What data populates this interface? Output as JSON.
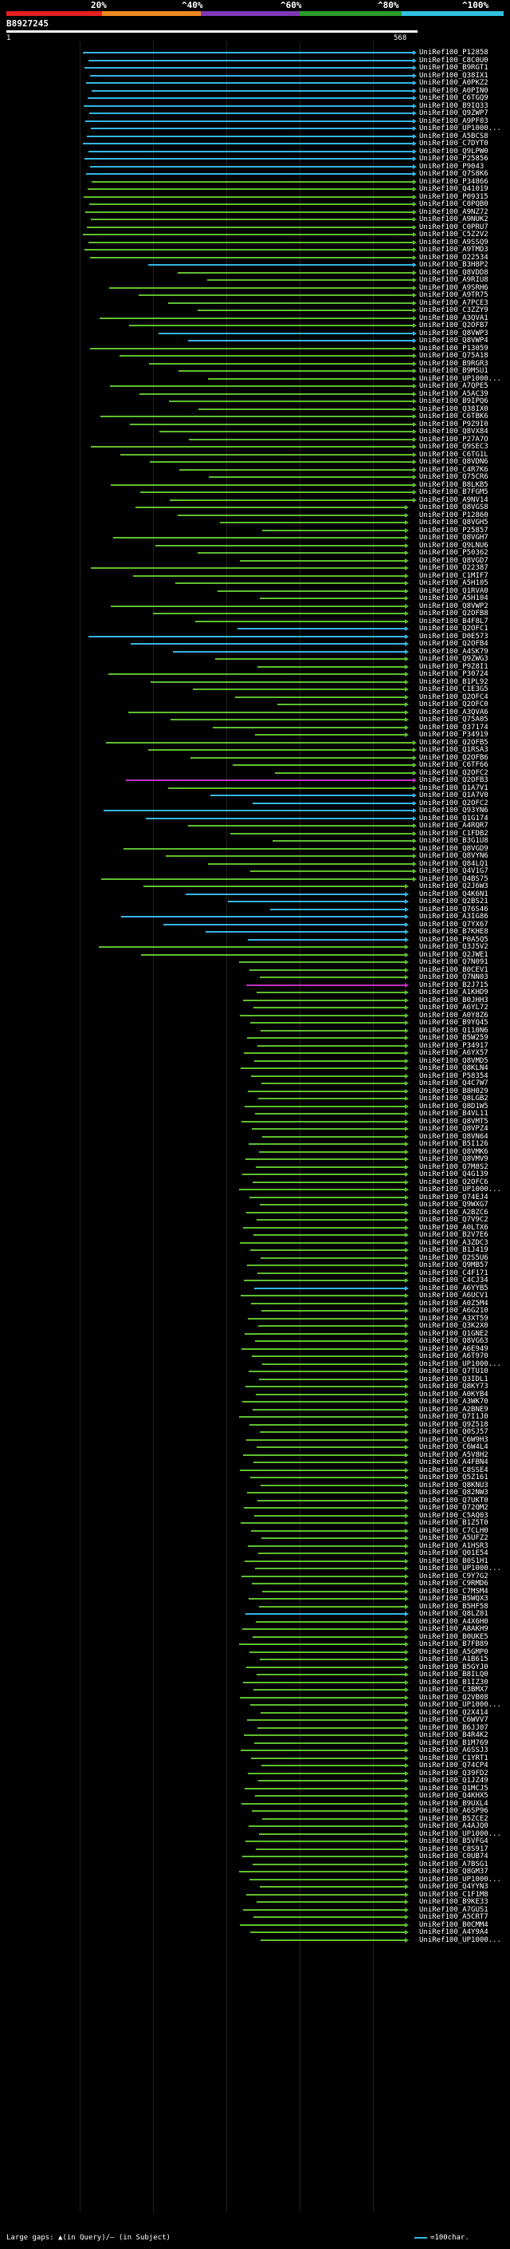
{
  "header": {
    "scale_labels": [
      "20%",
      "^40%",
      "^60%",
      "^80%",
      "^100%"
    ],
    "query_id": "B8927245",
    "query_start": "1",
    "query_end": "568"
  },
  "legend": {
    "gaps_text": "Large gaps: ▲(in Query)/— (in Subject)",
    "key_text": "=100char."
  },
  "colors": {
    "blue": "#34b6e4",
    "green": "#5fbf2f",
    "magenta": "#c032c0",
    "red": "#e62020",
    "orange": "#ef8a21",
    "purple": "#7f38b6"
  },
  "hits": [
    "UniRef100_P12858",
    "UniRef100_C8C0U0",
    "UniRef100_B9RGT1",
    "UniRef100_Q38IX1",
    "UniRef100_A0PKZ2",
    "UniRef100_A0PIN0",
    "UniRef100_C6TGQ9",
    "UniRef100_B9IQ33",
    "UniRef100_Q9ZWP7",
    "UniRef100_A9PF03",
    "UniRef100_UP1000...",
    "UniRef100_A5BCS8",
    "UniRef100_C7DYT0",
    "UniRef100_Q9LPW0",
    "UniRef100_P25856",
    "UniRef100_P9043",
    "UniRef100_Q7S8K6",
    "UniRef100_P34866",
    "UniRef100_Q41019",
    "UniRef100_P09315",
    "UniRef100_C0PQB0",
    "UniRef100_A9NZ72",
    "UniRef100_A9NUK2",
    "UniRef100_C0PRU7",
    "UniRef100_C5Z2V2",
    "UniRef100_A9SSQ9",
    "UniRef100_A9TMD3",
    "UniRef100_O22534",
    "UniRef100_B3H8P2",
    "UniRef100_Q8VDD8",
    "UniRef100_A9RIU8",
    "UniRef100_A9SRH6",
    "UniRef100_A9TR75",
    "UniRef100_A7PCE3",
    "UniRef100_C3ZZY9",
    "UniRef100_A3QVA1",
    "UniRef100_Q2OFB7",
    "UniRef100_Q8VWP3",
    "UniRef100_Q8VWP4",
    "UniRef100_P13059",
    "UniRef100_Q75A18",
    "UniRef100_B9RGR3",
    "UniRef100_B9MSU1",
    "UniRef100_UP1000...",
    "UniRef100_A7QPE5",
    "UniRef100_A5AC39",
    "UniRef100_B9IPQ6",
    "UniRef100_Q38IX0",
    "UniRef100_C6TBK6",
    "UniRef100_P9Z9I0",
    "UniRef100_Q8VX84",
    "UniRef100_P27A7O",
    "UniRef100_Q9SEC3",
    "UniRef100_C6TG1L",
    "UniRef100_Q8VDN6",
    "UniRef100_C4R7K6",
    "UniRef100_Q75CR6",
    "UniRef100_B8LKB5",
    "UniRef100_B7FGM5",
    "UniRef100_A9NV14",
    "UniRef100_Q8VGS8",
    "UniRef100_P12860",
    "UniRef100_Q8VGH5",
    "UniRef100_P25857",
    "UniRef100_Q8VGH7",
    "UniRef100_Q9LNU6",
    "UniRef100_P50362",
    "UniRef100_Q8VGD7",
    "UniRef100_O22387",
    "UniRef100_C1MIF7",
    "UniRef100_A5H105",
    "UniRef100_Q1RVA0",
    "UniRef100_A5H104",
    "UniRef100_Q8VWP2",
    "UniRef100_Q2OFB8",
    "UniRef100_B4F8L7",
    "UniRef100_Q2OFC1",
    "UniRef100_D0E573",
    "UniRef100_Q2OFB4",
    "UniRef100_A4SK79",
    "UniRef100_Q9ZWG3",
    "UniRef100_P9Z8I1",
    "UniRef100_P30724",
    "UniRef100_B1PL92",
    "UniRef100_C1E3G5",
    "UniRef100_Q2OFC4",
    "UniRef100_Q2OFC0",
    "UniRef100_A3QVA6",
    "UniRef100_Q75A05",
    "UniRef100_Q37174",
    "UniRef100_P34919",
    "UniRef100_Q2OFB5",
    "UniRef100_Q1RSA3",
    "UniRef100_Q2OFB6",
    "UniRef100_C6TF66",
    "UniRef100_Q2OFC2",
    "UniRef100_Q2OFB3",
    "UniRef100_Q1A7V1",
    "UniRef100_Q1A7V0",
    "UniRef100_Q2OFC2",
    "UniRef100_Q93YN6",
    "UniRef100_Q1G174",
    "UniRef100_A4RQR7",
    "UniRef100_C1FDB2",
    "UniRef100_B3G1U8",
    "UniRef100_Q8VGD9",
    "UniRef100_Q8VYN6",
    "UniRef100_Q84LQ1",
    "UniRef100_Q4V1G7",
    "UniRef100_Q4BS75",
    "UniRef100_Q2J6W3",
    "UniRef100_Q4K6N1",
    "UniRef100_Q2BS21",
    "UniRef100_Q76S46",
    "UniRef100_A3IG86",
    "UniRef100_Q7YX67",
    "UniRef100_B7KHE8",
    "UniRef100_P0A5Q5",
    "UniRef100_Q3J5V2",
    "UniRef100_Q2JWE1",
    "UniRef100_Q7N091",
    "UniRef100_B0CEV1",
    "UniRef100_Q7NN03",
    "UniRef100_B2J715",
    "UniRef100_A1KHD9",
    "UniRef100_B0JHH3",
    "UniRef100_A6YL72",
    "UniRef100_A0Y8Z6",
    "UniRef100_B9YQ45",
    "UniRef100_Q110N6",
    "UniRef100_B5W259",
    "UniRef100_P34917",
    "UniRef100_A6YX57",
    "UniRef100_Q8VMD5",
    "UniRef100_Q8KLN4",
    "UniRef100_P58354",
    "UniRef100_Q4C7W7",
    "UniRef100_B8H029",
    "UniRef100_Q8LGB2",
    "UniRef100_Q8D1W5",
    "UniRef100_B4VL11",
    "UniRef100_Q8VMT5",
    "UniRef100_Q8VPZ4",
    "UniRef100_Q8VN64",
    "UniRef100_B5I126",
    "UniRef100_Q8VMK6",
    "UniRef100_Q8VMV9",
    "UniRef100_Q7M8S2",
    "UniRef100_Q4G139",
    "UniRef100_Q2OFC6",
    "UniRef100_UP1000...",
    "UniRef100_Q74EJ4",
    "UniRef100_Q9WXG7",
    "UniRef100_A2BZC6",
    "UniRef100_Q7V9C2",
    "UniRef100_A0LTX6",
    "UniRef100_B2V7E6",
    "UniRef100_A3ZDC3",
    "UniRef100_B1J419",
    "UniRef100_Q2S5U6",
    "UniRef100_Q9MB57",
    "UniRef100_C4F171",
    "UniRef100_C4CJ34",
    "UniRef100_A6YYB5",
    "UniRef100_A6UCV1",
    "UniRef100_A0Z5M4",
    "UniRef100_A6G210",
    "UniRef100_A3XT59",
    "UniRef100_Q3K2X0",
    "UniRef100_Q1GNE2",
    "UniRef100_Q8VG63",
    "UniRef100_A6E949",
    "UniRef100_A6T970",
    "UniRef100_UP1000...",
    "UniRef100_Q7TU10",
    "UniRef100_Q3IDL1",
    "UniRef100_Q8KY73",
    "UniRef100_A0KYB4",
    "UniRef100_A3WK70",
    "UniRef100_A2BNE9",
    "UniRef100_Q7I1J0",
    "UniRef100_Q9Z518",
    "UniRef100_Q0SJ57",
    "UniRef100_C6W9H3",
    "UniRef100_C6W4L4",
    "UniRef100_A5V8H2",
    "UniRef100_A4FBN4",
    "UniRef100_C8SSE4",
    "UniRef100_Q5Z161",
    "UniRef100_Q8KNU3",
    "UniRef100_Q82NW3",
    "UniRef100_Q7UKT0",
    "UniRef100_Q72QM2",
    "UniRef100_C5AQ03",
    "UniRef100_B1Z5T0",
    "UniRef100_C7CLH0",
    "UniRef100_A5UFZ2",
    "UniRef100_A1HSR3",
    "UniRef100_Q01E54",
    "UniRef100_B0S1H1",
    "UniRef100_UP1000...",
    "UniRef100_C9Y7G2",
    "UniRef100_C9RMD6",
    "UniRef100_C7MSM4",
    "UniRef100_B5WQX3",
    "UniRef100_B5HF58",
    "UniRef100_Q8LZ01",
    "UniRef100_A4X6H0",
    "UniRef100_A8AKH9",
    "UniRef100_B0UKE5",
    "UniRef100_B7FB89",
    "UniRef100_A5GMP0",
    "UniRef100_A1B615",
    "UniRef100_B5GYJ0",
    "UniRef100_B8ILQ0",
    "UniRef100_B1IZ30",
    "UniRef100_C3BMX7",
    "UniRef100_Q2VB08",
    "UniRef100_UP1000...",
    "UniRef100_Q2X414",
    "UniRef100_C6WVV7",
    "UniRef100_B6JJ07",
    "UniRef100_B4R4K2",
    "UniRef100_B1M769",
    "UniRef100_A6SSJ3",
    "UniRef100_C1YRT1",
    "UniRef100_Q74CP4",
    "UniRef100_Q39FD2",
    "UniRef100_Q1JZ49",
    "UniRef100_Q1MCJ5",
    "UniRef100_Q4KHX5",
    "UniRef100_B9UXL4",
    "UniRef100_A6SP96",
    "UniRef100_B5ZCE2",
    "UniRef100_A4AJQ0",
    "UniRef100_UP1000...",
    "UniRef100_B5VFG4",
    "UniRef100_C8S917",
    "UniRef100_C0UB74",
    "UniRef100_A7BSG1",
    "UniRef100_Q8GM37",
    "UniRef100_UP1000...",
    "UniRef100_Q4YYN3",
    "UniRef100_C1F1M8",
    "UniRef100_B9KE33",
    "UniRef100_A7GUS1",
    "UniRef100_A5CRT7",
    "UniRef100_B0CMM4",
    "UniRef100_A4Y9A4",
    "UniRef100_UP1000..."
  ]
}
